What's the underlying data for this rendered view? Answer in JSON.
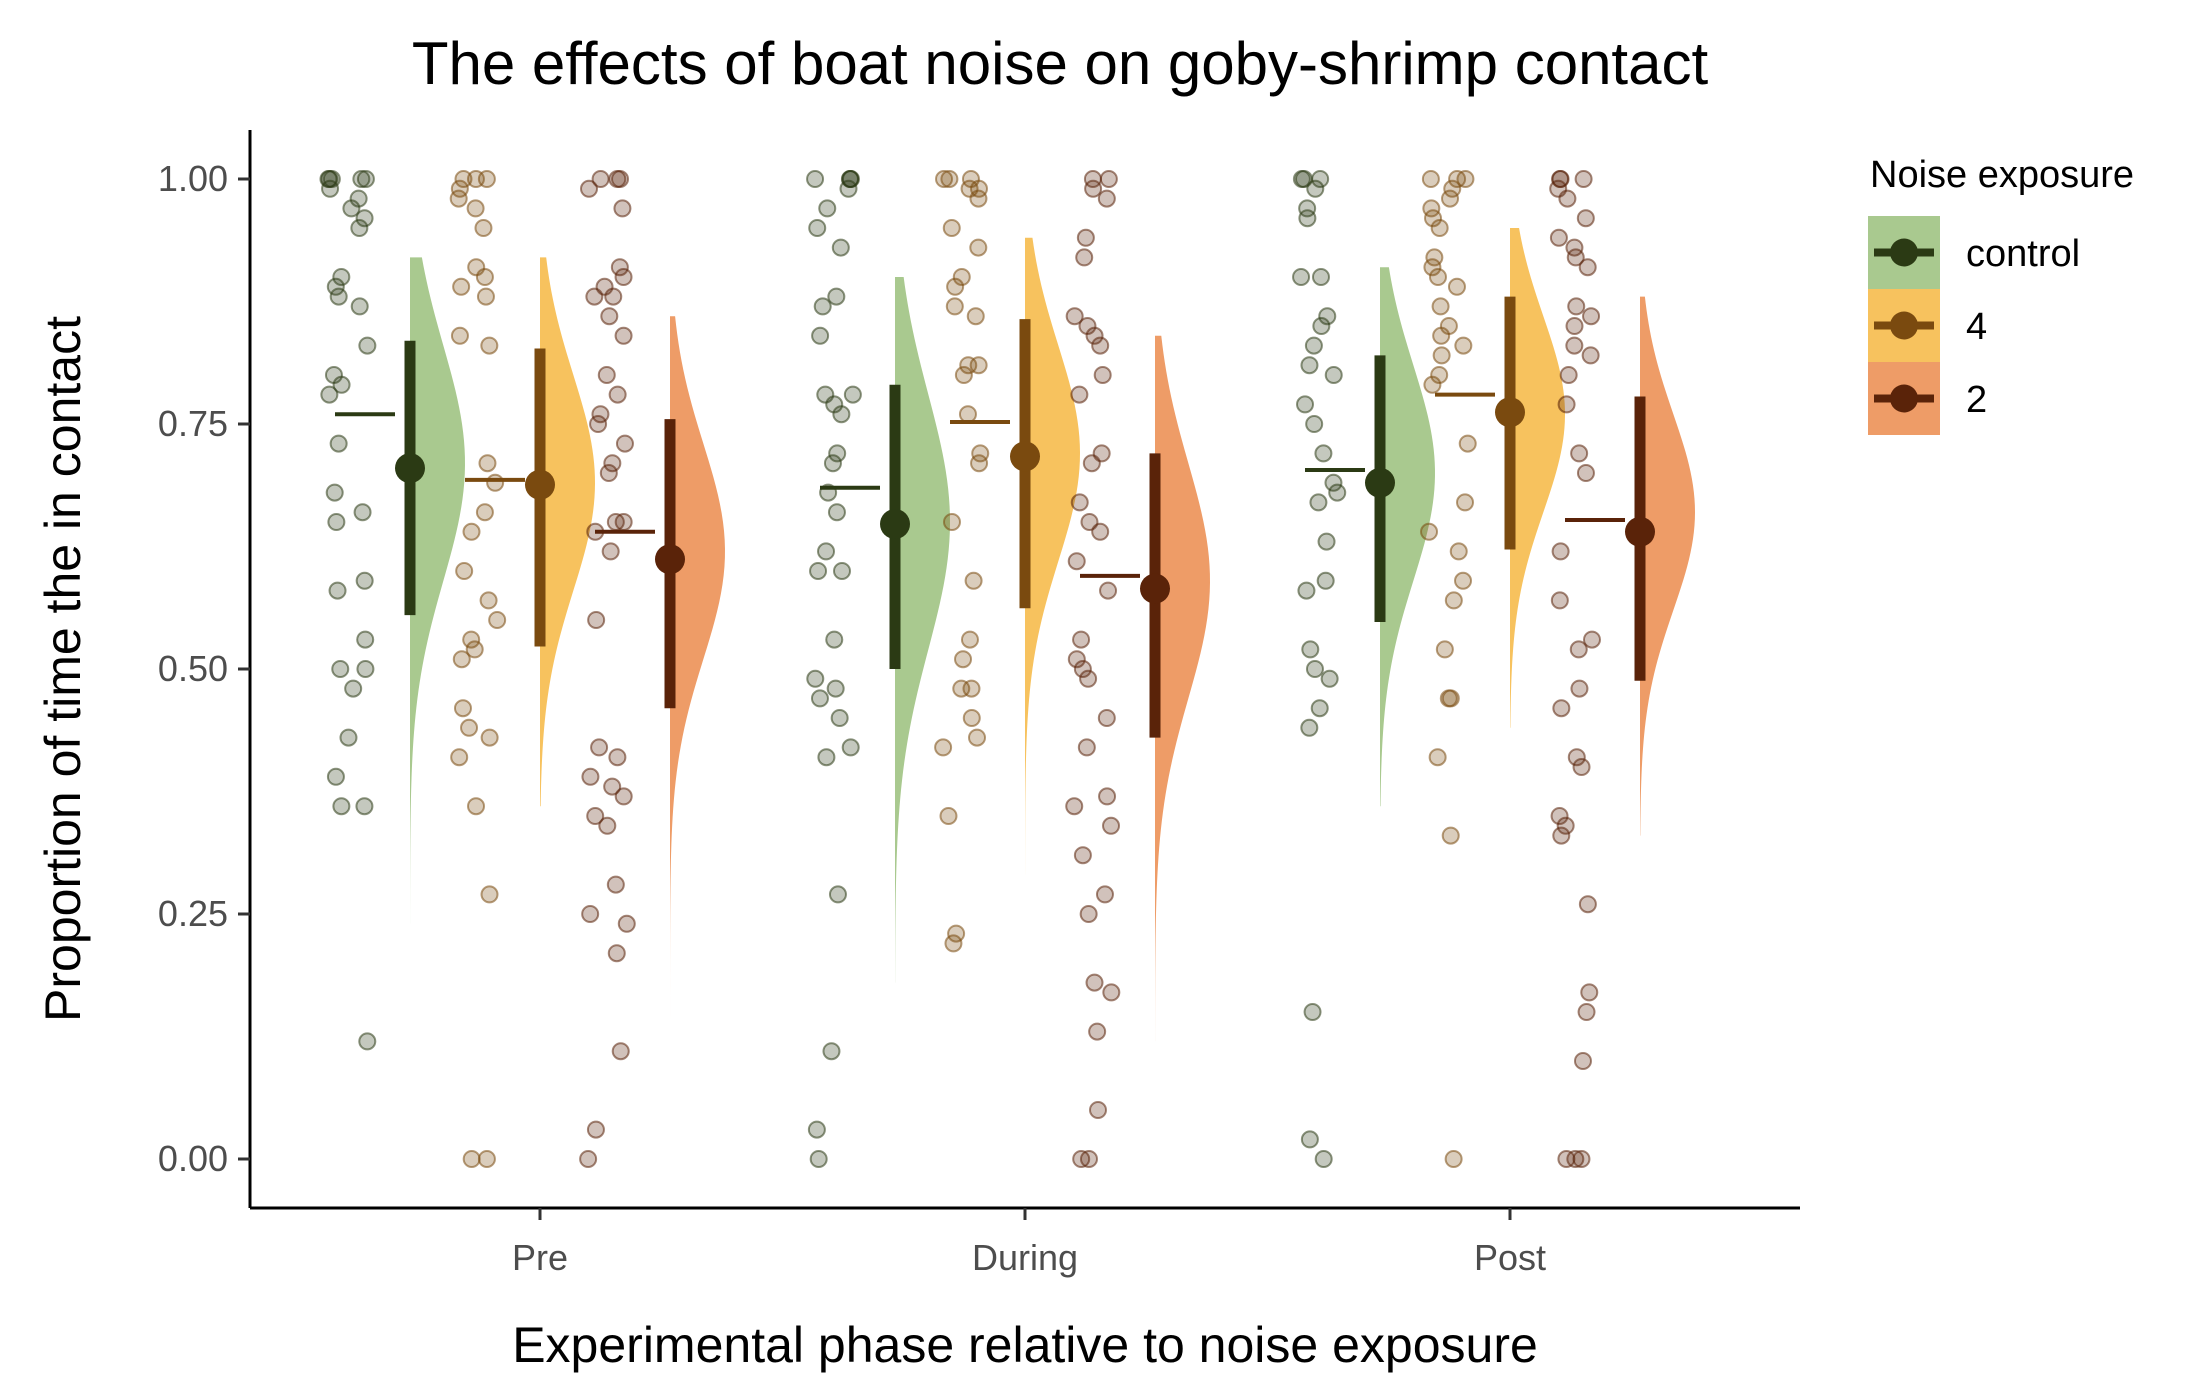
{
  "chart_data": {
    "type": "raincloud",
    "title": "The effects of boat noise on goby-shrimp contact",
    "xlabel": "Experimental phase relative to noise exposure",
    "ylabel": "Proportion of time the in contact",
    "categories": [
      "Pre",
      "During",
      "Post"
    ],
    "ylim": [
      -0.05,
      1.05
    ],
    "yticks": [
      0,
      0.25,
      0.5,
      0.75,
      1
    ],
    "ytick_labels": [
      "0.00",
      "0.25",
      "0.50",
      "0.75",
      "1.00"
    ],
    "grid": false,
    "legend": {
      "title": "Noise exposure",
      "placement": "right"
    },
    "series": [
      {
        "name": "control",
        "fill": "#a9c98f",
        "dark": "#2b3a14",
        "mean": [
          0.705,
          0.648,
          0.69
        ],
        "ci_low": [
          0.555,
          0.5,
          0.548
        ],
        "ci_high": [
          0.835,
          0.79,
          0.82
        ],
        "median": [
          0.76,
          0.685,
          0.703
        ],
        "density_sd": [
          0.12,
          0.13,
          0.11
        ],
        "density_peak": [
          0.71,
          0.65,
          0.7
        ],
        "density_range": [
          [
            0.24,
            0.92
          ],
          [
            0.18,
            0.9
          ],
          [
            0.36,
            0.91
          ]
        ],
        "points": [
          [
            1,
            1,
            1,
            1,
            1,
            0.99,
            0.98,
            0.97,
            0.96,
            0.95,
            0.9,
            0.89,
            0.88,
            0.87,
            0.83,
            0.8,
            0.79,
            0.78,
            0.73,
            0.68,
            0.66,
            0.65,
            0.59,
            0.58,
            0.53,
            0.5,
            0.5,
            0.48,
            0.43,
            0.39,
            0.36,
            0.36,
            0.12
          ],
          [
            1,
            1,
            1,
            1,
            0.99,
            0.97,
            0.95,
            0.93,
            0.88,
            0.87,
            0.84,
            0.78,
            0.78,
            0.77,
            0.76,
            0.72,
            0.71,
            0.68,
            0.66,
            0.62,
            0.6,
            0.6,
            0.53,
            0.49,
            0.48,
            0.47,
            0.45,
            0.42,
            0.41,
            0.27,
            0.11,
            0.03,
            0
          ],
          [
            1,
            1,
            1,
            0.99,
            0.97,
            0.96,
            0.9,
            0.9,
            0.86,
            0.85,
            0.83,
            0.81,
            0.8,
            0.77,
            0.75,
            0.72,
            0.69,
            0.68,
            0.67,
            0.63,
            0.59,
            0.58,
            0.52,
            0.5,
            0.49,
            0.46,
            0.44,
            0.15,
            0.02,
            0
          ]
        ]
      },
      {
        "name": "4",
        "fill": "#f7c25e",
        "dark": "#7a4a0f",
        "mean": [
          0.688,
          0.717,
          0.762
        ],
        "ci_low": [
          0.523,
          0.562,
          0.622
        ],
        "ci_high": [
          0.827,
          0.857,
          0.88
        ],
        "median": [
          0.693,
          0.752,
          0.78
        ],
        "density_sd": [
          0.11,
          0.11,
          0.1
        ],
        "density_peak": [
          0.69,
          0.72,
          0.76
        ],
        "density_range": [
          [
            0.36,
            0.92
          ],
          [
            0.29,
            0.94
          ],
          [
            0.44,
            0.95
          ]
        ],
        "points": [
          [
            1,
            1,
            1,
            0.99,
            0.98,
            0.97,
            0.95,
            0.91,
            0.9,
            0.89,
            0.88,
            0.84,
            0.83,
            0.71,
            0.69,
            0.66,
            0.64,
            0.6,
            0.57,
            0.55,
            0.53,
            0.52,
            0.51,
            0.46,
            0.44,
            0.43,
            0.41,
            0.36,
            0.27,
            0,
            0
          ],
          [
            1,
            1,
            1,
            0.99,
            0.99,
            0.98,
            0.95,
            0.93,
            0.9,
            0.89,
            0.87,
            0.86,
            0.81,
            0.81,
            0.8,
            0.76,
            0.72,
            0.71,
            0.65,
            0.59,
            0.53,
            0.51,
            0.48,
            0.48,
            0.45,
            0.43,
            0.42,
            0.35,
            0.23,
            0.22
          ],
          [
            1,
            1,
            1,
            0.99,
            0.98,
            0.97,
            0.96,
            0.95,
            0.92,
            0.91,
            0.9,
            0.89,
            0.87,
            0.85,
            0.84,
            0.83,
            0.82,
            0.8,
            0.79,
            0.73,
            0.67,
            0.64,
            0.62,
            0.59,
            0.57,
            0.52,
            0.47,
            0.47,
            0.41,
            0.33,
            0
          ]
        ]
      },
      {
        "name": "2",
        "fill": "#ee9c67",
        "dark": "#5a2309",
        "mean": [
          0.612,
          0.582,
          0.64
        ],
        "ci_low": [
          0.46,
          0.43,
          0.488
        ],
        "ci_high": [
          0.755,
          0.72,
          0.778
        ],
        "median": [
          0.64,
          0.595,
          0.652
        ],
        "density_sd": [
          0.11,
          0.12,
          0.1
        ],
        "density_peak": [
          0.62,
          0.59,
          0.66
        ],
        "density_range": [
          [
            0.13,
            0.86
          ],
          [
            0.12,
            0.84
          ],
          [
            0.33,
            0.88
          ]
        ],
        "points": [
          [
            1,
            1,
            1,
            0.99,
            0.97,
            0.91,
            0.9,
            0.89,
            0.88,
            0.88,
            0.86,
            0.84,
            0.8,
            0.78,
            0.76,
            0.75,
            0.73,
            0.71,
            0.7,
            0.65,
            0.65,
            0.64,
            0.62,
            0.55,
            0.42,
            0.41,
            0.39,
            0.38,
            0.37,
            0.35,
            0.34,
            0.28,
            0.25,
            0.24,
            0.21,
            0.11,
            0.03,
            0
          ],
          [
            1,
            1,
            0.99,
            0.98,
            0.94,
            0.92,
            0.86,
            0.85,
            0.84,
            0.83,
            0.8,
            0.78,
            0.72,
            0.71,
            0.67,
            0.65,
            0.64,
            0.61,
            0.58,
            0.53,
            0.51,
            0.5,
            0.49,
            0.45,
            0.42,
            0.37,
            0.36,
            0.34,
            0.31,
            0.27,
            0.25,
            0.18,
            0.17,
            0.13,
            0.05,
            0,
            0
          ],
          [
            1,
            1,
            1,
            0.99,
            0.98,
            0.96,
            0.94,
            0.93,
            0.92,
            0.91,
            0.87,
            0.86,
            0.85,
            0.83,
            0.82,
            0.8,
            0.77,
            0.72,
            0.7,
            0.62,
            0.57,
            0.53,
            0.52,
            0.48,
            0.46,
            0.41,
            0.4,
            0.35,
            0.34,
            0.33,
            0.26,
            0.17,
            0.15,
            0.1,
            0,
            0,
            0
          ]
        ]
      }
    ]
  }
}
